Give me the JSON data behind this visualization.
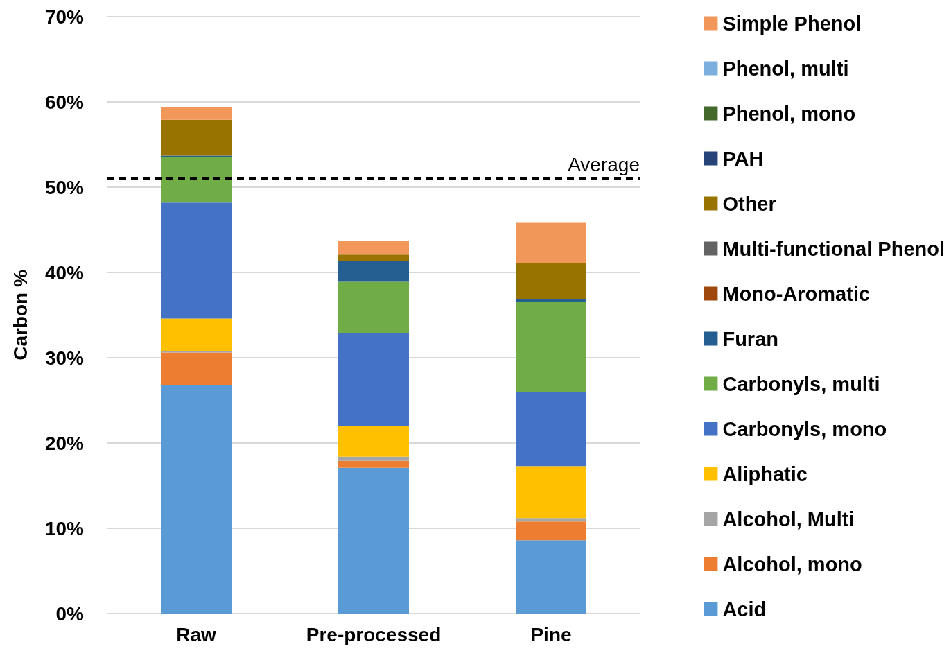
{
  "chart_data": {
    "type": "bar",
    "stacked": true,
    "ylabel": "Carbon %",
    "categories": [
      "Raw",
      "Pre-processed",
      "Pine"
    ],
    "ylim": [
      0,
      70
    ],
    "yticks": [
      {
        "value": 0,
        "label": "0%"
      },
      {
        "value": 10,
        "label": "10%"
      },
      {
        "value": 20,
        "label": "20%"
      },
      {
        "value": 30,
        "label": "30%"
      },
      {
        "value": 40,
        "label": "40%"
      },
      {
        "value": 50,
        "label": "50%"
      },
      {
        "value": 60,
        "label": "60%"
      },
      {
        "value": 70,
        "label": "70%"
      }
    ],
    "grid": "y",
    "legend": "right",
    "ref_lines": [
      {
        "axis": "y",
        "value": 51,
        "label": "Average",
        "color": "#000000",
        "line_style": "dashed"
      }
    ],
    "series": [
      {
        "name": "Acid",
        "color": "#5b9bd5",
        "values": [
          26.8,
          17.1,
          8.6
        ]
      },
      {
        "name": "Alcohol, mono",
        "color": "#ed7d31",
        "values": [
          3.8,
          0.8,
          2.2
        ]
      },
      {
        "name": "Alcohol, Multi",
        "color": "#a5a5a5",
        "values": [
          0.2,
          0.5,
          0.4
        ]
      },
      {
        "name": "Aliphatic",
        "color": "#ffc000",
        "values": [
          3.8,
          3.6,
          6.1
        ]
      },
      {
        "name": "Carbonyls, mono",
        "color": "#4472c4",
        "values": [
          13.6,
          10.9,
          8.7
        ]
      },
      {
        "name": "Carbonyls, multi",
        "color": "#70ad47",
        "values": [
          5.3,
          6.0,
          10.5
        ]
      },
      {
        "name": "Furan",
        "color": "#255e91",
        "values": [
          0.2,
          2.4,
          0.4
        ]
      },
      {
        "name": "Mono-Aromatic",
        "color": "#9e480e",
        "values": [
          0,
          0,
          0
        ]
      },
      {
        "name": "Multi-functional Phenol",
        "color": "#636363",
        "values": [
          0,
          0,
          0
        ]
      },
      {
        "name": "Other",
        "color": "#997300",
        "values": [
          4.2,
          0.8,
          4.2
        ]
      },
      {
        "name": "PAH",
        "color": "#264478",
        "values": [
          0,
          0,
          0
        ]
      },
      {
        "name": "Phenol, mono",
        "color": "#43682b",
        "values": [
          0,
          0,
          0
        ]
      },
      {
        "name": "Phenol, multi",
        "color": "#7cafdd",
        "values": [
          0,
          0,
          0
        ]
      },
      {
        "name": "Simple Phenol",
        "color": "#f1975a",
        "values": [
          1.5,
          1.6,
          4.8
        ]
      }
    ]
  }
}
